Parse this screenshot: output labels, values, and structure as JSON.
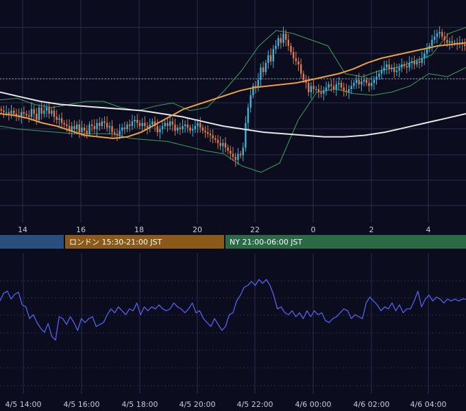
{
  "colors": {
    "background": "#0b0d1f",
    "grid": "#2a2e48",
    "candle_up": "#38b7d8",
    "candle_down": "#e07a4e",
    "ma_short": "#f0a040",
    "ma_long": "#e8e8e8",
    "bollinger": "#3ea05a",
    "indicator_line": "#5a5ff0",
    "session_tokyo": "#2a4f7c",
    "session_london": "#8b5a18",
    "session_ny": "#2a6a45"
  },
  "price_panel": {
    "x_ticks": [
      "14",
      "16",
      "18",
      "20",
      "22",
      "0",
      "2",
      "4"
    ]
  },
  "sessions": [
    {
      "label": "",
      "color_key": "session_tokyo"
    },
    {
      "label": "ロンドン 15:30-21:00 JST",
      "color_key": "session_london"
    },
    {
      "label": "NY 21:00-06:00 JST",
      "color_key": "session_ny"
    }
  ],
  "indicator_panel": {
    "x_ticks": [
      "4/5 14:00",
      "4/5 16:00",
      "4/5 18:00",
      "4/5 20:00",
      "4/5 22:00",
      "4/6 00:00",
      "4/6 02:00",
      "4/6 04:00"
    ]
  },
  "chart_data": [
    {
      "type": "candlestick",
      "title": "",
      "x_labels": [
        "14",
        "16",
        "18",
        "20",
        "22",
        "0",
        "2",
        "4"
      ],
      "series": [
        {
          "kind": "close_path",
          "values": [
            46,
            45,
            45,
            44,
            46,
            44,
            43,
            42,
            45,
            44,
            43,
            42,
            47,
            44,
            40,
            48,
            44,
            46,
            48,
            44,
            46,
            42,
            40,
            41,
            38,
            37,
            36,
            33,
            36,
            34,
            37,
            32,
            35,
            33,
            31,
            37,
            36,
            34,
            38,
            36,
            39,
            38,
            35,
            36,
            32,
            31,
            30,
            33,
            35,
            34,
            37,
            36,
            39,
            40,
            38,
            36,
            38,
            36,
            35,
            37,
            39,
            36,
            32,
            34,
            36,
            38,
            36,
            39,
            37,
            33,
            35,
            34,
            36,
            37,
            35,
            33,
            34,
            36,
            38,
            35,
            33,
            32,
            31,
            30,
            28,
            27,
            25,
            23,
            25,
            22,
            20,
            18,
            16,
            14,
            18,
            17,
            22,
            38,
            48,
            56,
            62,
            61,
            66,
            74,
            71,
            77,
            82,
            78,
            86,
            88,
            93,
            90,
            96,
            92,
            88,
            84,
            80,
            78,
            76,
            70,
            66,
            64,
            58,
            62,
            60,
            60,
            58,
            57,
            59,
            61,
            63,
            62,
            60,
            63,
            64,
            61,
            59,
            58,
            60,
            62,
            64,
            66,
            63,
            65,
            66,
            64,
            62,
            64,
            66,
            68,
            70,
            72,
            74,
            76,
            73,
            74,
            71,
            72,
            74,
            76,
            75,
            74,
            77,
            78,
            76,
            78,
            77,
            80,
            83,
            86,
            88,
            92,
            94,
            96,
            97,
            94,
            92,
            90,
            91,
            90,
            90,
            89,
            90,
            89,
            88
          ]
        },
        {
          "kind": "moving_average_short",
          "values": [
            44,
            43,
            41,
            38,
            36,
            33,
            30,
            29,
            28,
            29,
            32,
            37,
            42,
            47,
            50,
            53,
            56,
            59,
            61,
            62,
            63,
            64,
            66,
            68,
            70,
            73,
            77,
            80,
            82,
            84,
            86,
            88,
            89,
            90
          ]
        },
        {
          "kind": "moving_average_long",
          "values": [
            58,
            55,
            52,
            50,
            49,
            48,
            47,
            46,
            44,
            42,
            39,
            36,
            34,
            32,
            31,
            30,
            29,
            29,
            30,
            32,
            35,
            38,
            41,
            44
          ]
        },
        {
          "kind": "bollinger_upper",
          "values": [
            53,
            54,
            50,
            48,
            50,
            52,
            52,
            48,
            46,
            49,
            51,
            46,
            48,
            59,
            72,
            88,
            98,
            96,
            92,
            88,
            70,
            68,
            72,
            74,
            78,
            82,
            96,
            100
          ]
        },
        {
          "kind": "bollinger_lower",
          "values": [
            36,
            34,
            33,
            32,
            31,
            31,
            31,
            28,
            27,
            26,
            23,
            20,
            18,
            10,
            6,
            12,
            40,
            58,
            60,
            57,
            56,
            58,
            62,
            70,
            68,
            74
          ]
        }
      ]
    },
    {
      "type": "line",
      "title": "",
      "x_labels": [
        "4/5 14:00",
        "4/5 16:00",
        "4/5 18:00",
        "4/5 20:00",
        "4/5 22:00",
        "4/6 00:00",
        "4/6 02:00",
        "4/6 04:00"
      ],
      "series": [
        {
          "name": "",
          "values": [
            48,
            56,
            58,
            50,
            55,
            57,
            44,
            42,
            30,
            34,
            26,
            20,
            16,
            25,
            12,
            8,
            32,
            30,
            24,
            32,
            26,
            18,
            30,
            26,
            30,
            32,
            22,
            24,
            26,
            34,
            40,
            36,
            42,
            38,
            34,
            40,
            38,
            46,
            34,
            42,
            38,
            42,
            40,
            44,
            40,
            38,
            40,
            46,
            42,
            40,
            36,
            40,
            46,
            36,
            38,
            30,
            26,
            22,
            30,
            24,
            18,
            22,
            34,
            36,
            48,
            54,
            62,
            64,
            68,
            64,
            70,
            66,
            70,
            64,
            54,
            40,
            42,
            36,
            34,
            38,
            32,
            36,
            30,
            38,
            32,
            38,
            34,
            36,
            28,
            26,
            30,
            32,
            36,
            40,
            38,
            30,
            34,
            32,
            30,
            46,
            52,
            48,
            44,
            38,
            42,
            40,
            46,
            38,
            44,
            36,
            40,
            40,
            48,
            58,
            42,
            50,
            54,
            48,
            52,
            50,
            46,
            50,
            48,
            50,
            48,
            50,
            50
          ]
        }
      ]
    }
  ]
}
